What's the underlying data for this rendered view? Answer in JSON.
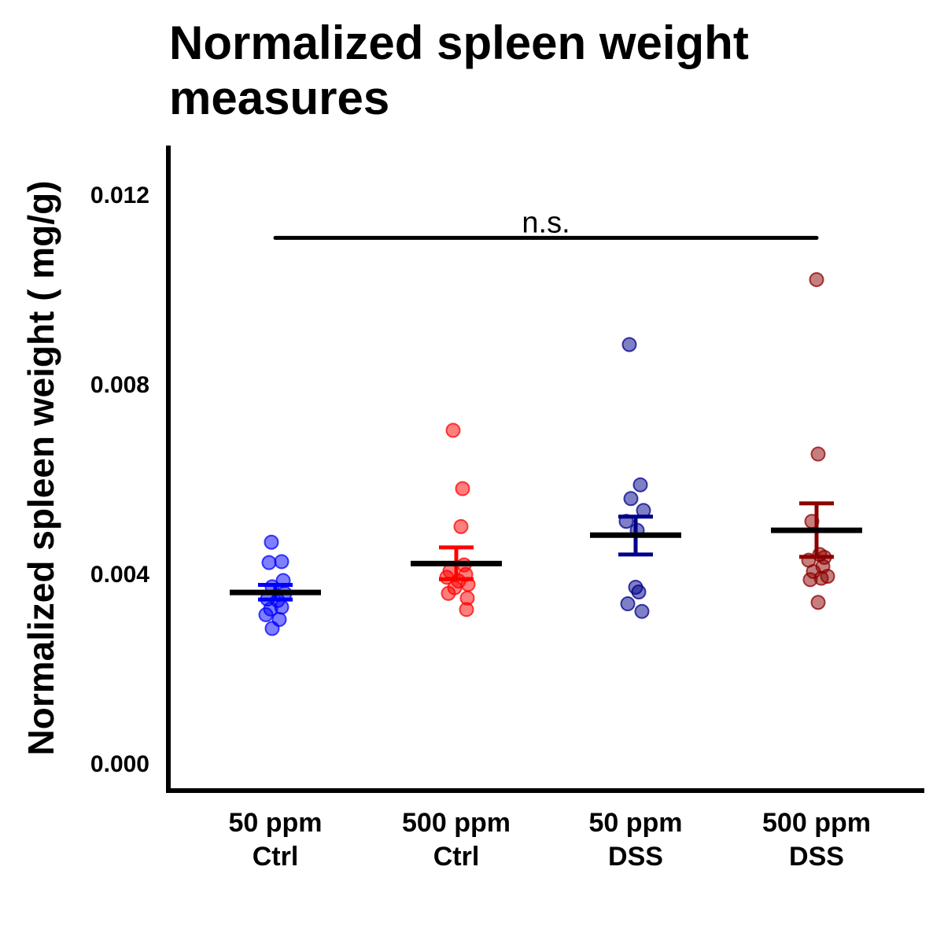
{
  "chart_data": {
    "type": "scatter",
    "title": "Normalized spleen weight measures",
    "xlabel": "",
    "ylabel": "Normalized spleen weight ( mg/g)",
    "ylim": [
      -0.0006,
      0.0131
    ],
    "yticks": [
      0.0,
      0.004,
      0.008,
      0.012
    ],
    "ytick_labels": [
      "0.000",
      "0.004",
      "0.008",
      "0.012"
    ],
    "grid": false,
    "legend": "none",
    "categories": [
      "50 ppm\nCtrl",
      "500 ppm\nCtrl",
      "50 ppm\nDSS",
      "500 ppm\nDSS"
    ],
    "groups": [
      {
        "label_lines": [
          "50 ppm",
          "Ctrl"
        ],
        "color": "#0000ff",
        "mean": 0.0036,
        "sem_low": 0.00345,
        "sem_high": 0.00376,
        "points": [
          0.00466,
          0.00425,
          0.00423,
          0.00385,
          0.00372,
          0.00358,
          0.00346,
          0.00343,
          0.00329,
          0.00325,
          0.00313,
          0.00303,
          0.00284
        ]
      },
      {
        "label_lines": [
          "500 ppm",
          "Ctrl"
        ],
        "color": "#ff0000",
        "mean": 0.00421,
        "sem_low": 0.00388,
        "sem_high": 0.00455,
        "points": [
          0.00702,
          0.00579,
          0.00499,
          0.00418,
          0.00405,
          0.00398,
          0.00392,
          0.00384,
          0.00377,
          0.0037,
          0.00358,
          0.00348,
          0.00324
        ]
      },
      {
        "label_lines": [
          "50 ppm",
          "DSS"
        ],
        "color": "#00008b",
        "mean": 0.00481,
        "sem_low": 0.0044,
        "sem_high": 0.0052,
        "points": [
          0.00883,
          0.00587,
          0.00558,
          0.00533,
          0.0051,
          0.00491,
          0.00371,
          0.00361,
          0.00336,
          0.0032
        ]
      },
      {
        "label_lines": [
          "500 ppm",
          "DSS"
        ],
        "color": "#8b0000",
        "mean": 0.00491,
        "sem_low": 0.00435,
        "sem_high": 0.00548,
        "points": [
          0.0102,
          0.00652,
          0.0051,
          0.0044,
          0.00434,
          0.00428,
          0.00415,
          0.00404,
          0.00394,
          0.0039,
          0.00387,
          0.00339
        ]
      }
    ],
    "annotations": [
      {
        "text": "n.s.",
        "from_group": 0,
        "to_group": 3,
        "y": 0.01108
      }
    ]
  }
}
